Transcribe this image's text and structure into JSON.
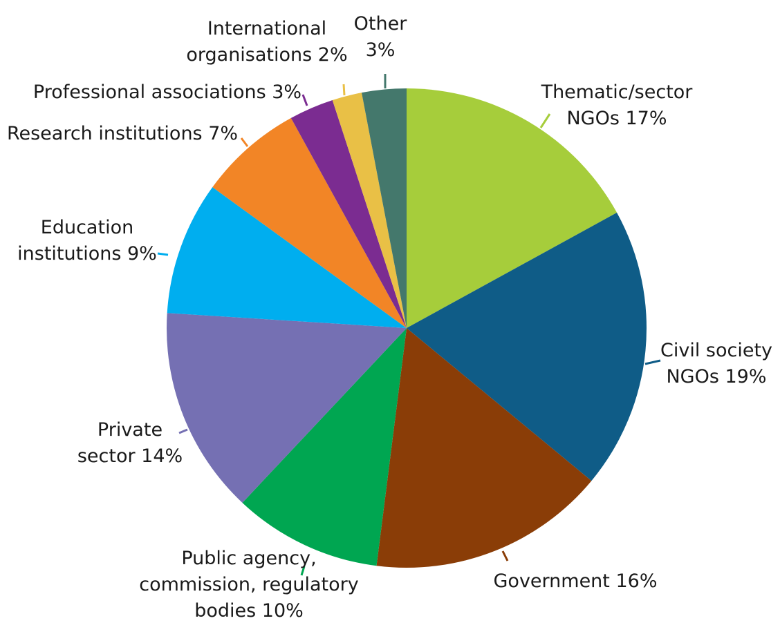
{
  "chart_data": {
    "type": "pie",
    "title": "",
    "slices": [
      {
        "lines": [
          "Thematic/sector",
          "NGOs 17%"
        ],
        "value": 17,
        "color": "#a6cd3b"
      },
      {
        "lines": [
          "Civil society",
          "NGOs 19%"
        ],
        "value": 19,
        "color": "#0f5c87"
      },
      {
        "lines": [
          "Government 16%"
        ],
        "value": 16,
        "color": "#8a3d07"
      },
      {
        "lines": [
          "Public agency,",
          "commission, regulatory",
          "bodies 10%"
        ],
        "value": 10,
        "color": "#00a651"
      },
      {
        "lines": [
          "Private",
          "sector 14%"
        ],
        "value": 14,
        "color": "#7570b3"
      },
      {
        "lines": [
          "Education",
          "institutions 9%"
        ],
        "value": 9,
        "color": "#00aeef"
      },
      {
        "lines": [
          "Research institutions 7%"
        ],
        "value": 7,
        "color": "#f28526"
      },
      {
        "lines": [
          "Professional associations 3%"
        ],
        "value": 3,
        "color": "#7b2c91"
      },
      {
        "lines": [
          "International",
          "organisations 2%"
        ],
        "value": 2,
        "color": "#e9c046"
      },
      {
        "lines": [
          "Other",
          "3%"
        ],
        "value": 3,
        "color": "#44786c"
      }
    ],
    "start_angle": "12 o'clock",
    "direction": "clockwise"
  }
}
